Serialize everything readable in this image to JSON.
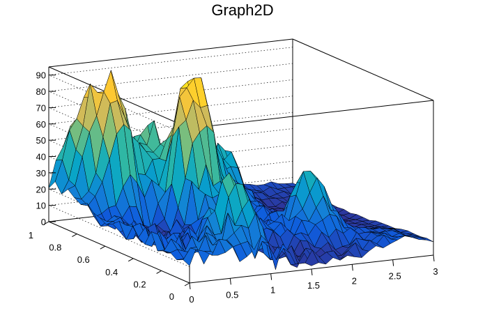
{
  "chart_data": {
    "type": "surface3d",
    "title": "Graph2D",
    "xlabel": "",
    "ylabel": "",
    "zlabel": "",
    "xlim": [
      0,
      3
    ],
    "ylim": [
      0,
      1
    ],
    "zlim": [
      0,
      95
    ],
    "x_ticks": [
      "0",
      "0.5",
      "1",
      "1.5",
      "2",
      "2.5",
      "3"
    ],
    "y_ticks": [
      "0",
      "0.2",
      "0.4",
      "0.6",
      "0.8",
      "1"
    ],
    "z_ticks": [
      "0",
      "10",
      "20",
      "30",
      "40",
      "50",
      "60",
      "70",
      "80",
      "90"
    ],
    "grid": true,
    "palette": [
      "#352a87",
      "#0f5cdd",
      "#1481d6",
      "#06a4ca",
      "#2eb7a4",
      "#87bf77",
      "#d1bb59",
      "#fec832",
      "#f9fb0e"
    ],
    "peaks": [
      {
        "x": 0.55,
        "y": 0.85,
        "z": 92
      },
      {
        "x": 0.3,
        "y": 0.95,
        "z": 60
      },
      {
        "x": 1.1,
        "y": 0.65,
        "z": 80
      },
      {
        "x": 1.0,
        "y": 0.9,
        "z": 55
      },
      {
        "x": 1.35,
        "y": 0.7,
        "z": 60
      },
      {
        "x": 0.9,
        "y": 0.2,
        "z": 45
      },
      {
        "x": 2.1,
        "y": 0.35,
        "z": 42
      },
      {
        "x": 1.8,
        "y": 0.8,
        "z": 35
      }
    ]
  }
}
